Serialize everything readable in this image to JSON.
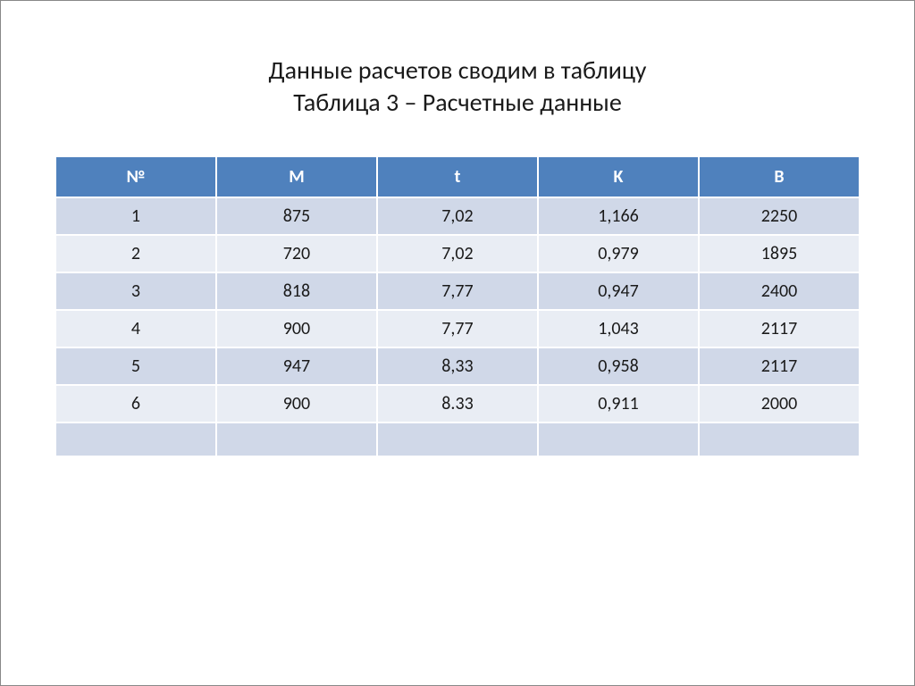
{
  "title": {
    "line1": "Данные расчетов сводим в таблицу",
    "line2": "Таблица 3 – Расчетные данные"
  },
  "table": {
    "columns": [
      "№",
      "M",
      "t",
      "K",
      "B"
    ],
    "rows": [
      [
        "1",
        "875",
        "7,02",
        "1,166",
        "2250"
      ],
      [
        "2",
        "720",
        "7,02",
        "0,979",
        "1895"
      ],
      [
        "3",
        "818",
        "7,77",
        "0,947",
        "2400"
      ],
      [
        "4",
        "900",
        "7,77",
        "1,043",
        "2117"
      ],
      [
        "5",
        "947",
        "8,33",
        "0,958",
        "2117"
      ],
      [
        "6",
        "900",
        "8.33",
        "0,911",
        "2000"
      ],
      [
        "",
        "",
        "",
        "",
        ""
      ]
    ],
    "header_bg": "#4f81bd",
    "header_fg": "#ffffff",
    "row_odd_bg": "#d0d8e8",
    "row_even_bg": "#e9edf4",
    "font_size": 20
  }
}
